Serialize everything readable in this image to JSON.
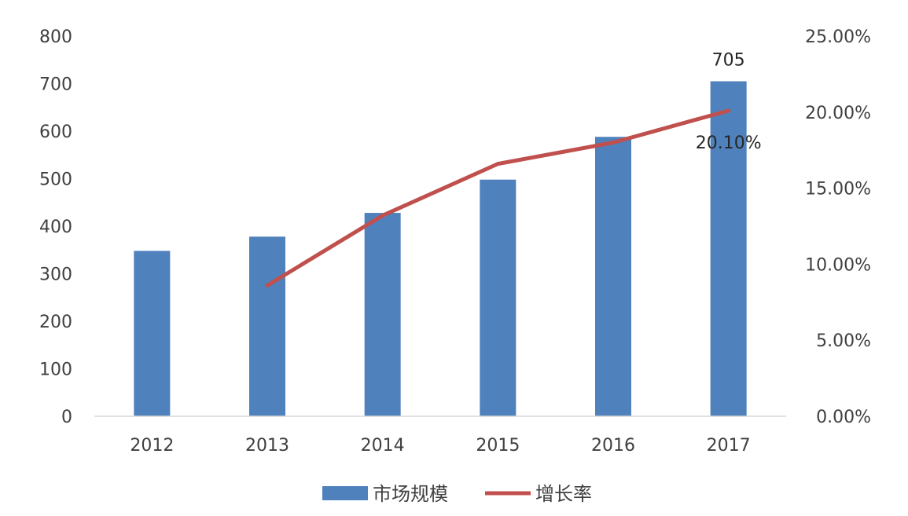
{
  "chart_data": {
    "type": "bar",
    "categories": [
      "2012",
      "2013",
      "2014",
      "2015",
      "2016",
      "2017"
    ],
    "series": [
      {
        "name": "市场规模",
        "type": "bar",
        "axis": "left",
        "color": "#4f81bd",
        "values": [
          348,
          378,
          428,
          498,
          588,
          705
        ]
      },
      {
        "name": "增长率",
        "type": "line",
        "axis": "right",
        "color": "#c0504d",
        "values": [
          null,
          8.6,
          13.2,
          16.6,
          18.0,
          20.1
        ]
      }
    ],
    "y_left": {
      "min": 0,
      "max": 800,
      "ticks": [
        0,
        100,
        200,
        300,
        400,
        500,
        600,
        700,
        800
      ],
      "tick_labels": [
        "0",
        "100",
        "200",
        "300",
        "400",
        "500",
        "600",
        "700",
        "800"
      ]
    },
    "y_right": {
      "min": 0,
      "max": 25,
      "unit": "%",
      "ticks": [
        0,
        5,
        10,
        15,
        20,
        25
      ],
      "tick_labels": [
        "0.00%",
        "5.00%",
        "10.00%",
        "15.00%",
        "20.00%",
        "25.00%"
      ]
    },
    "data_labels": [
      {
        "series": "市场规模",
        "category": "2017",
        "text": "705"
      },
      {
        "series": "增长率",
        "category": "2017",
        "text": "20.10%"
      }
    ],
    "grid": false,
    "legend_position": "bottom",
    "title": "",
    "xlabel": "",
    "ylabel": ""
  },
  "colors": {
    "bar": "#4f81bd",
    "line": "#c0504d",
    "axis": "#d9d9d9",
    "text": "#404040"
  }
}
